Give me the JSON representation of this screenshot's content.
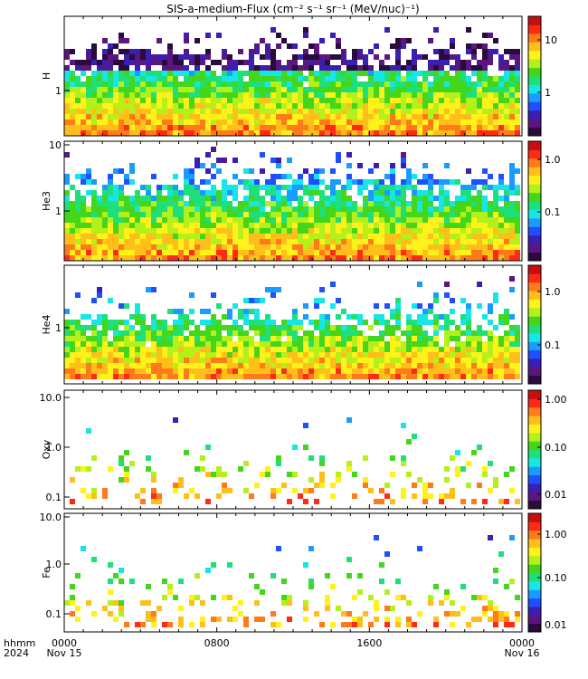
{
  "title": "SIS-a-medium-Flux (cm⁻² s⁻¹ sr⁻¹ (MeV/nuc)⁻¹)",
  "palette": [
    "#ffffff",
    "#2b0a3d",
    "#5b167f",
    "#3a1fb2",
    "#1f4fff",
    "#1a9cff",
    "#18e6e6",
    "#1ee07a",
    "#43d61a",
    "#b4f01a",
    "#fff21a",
    "#ffbf1a",
    "#ff7a1a",
    "#ff2a14",
    "#c80f0f"
  ],
  "x_axis": {
    "label_row1": "hhmm",
    "label_row2": "2024",
    "ticks": [
      {
        "hhmm": "0000",
        "date": "Nov 15"
      },
      {
        "hhmm": "0800",
        "date": ""
      },
      {
        "hhmm": "1600",
        "date": ""
      },
      {
        "hhmm": "0000",
        "date": "Nov 16"
      }
    ]
  },
  "chart_data": [
    {
      "type": "heatmap",
      "panel": "H",
      "ylabel": "H",
      "y_scale": "log",
      "y_ticks": [
        "1"
      ],
      "colorbar": {
        "scale": "log",
        "ticks": [
          "10",
          "1"
        ]
      },
      "x_range_hours": [
        0,
        24
      ]
    },
    {
      "type": "heatmap",
      "panel": "He3",
      "ylabel": "He3",
      "y_scale": "log",
      "y_ticks": [
        "10",
        "1"
      ],
      "colorbar": {
        "scale": "log",
        "ticks": [
          "1.0",
          "0.1"
        ]
      },
      "x_range_hours": [
        0,
        24
      ]
    },
    {
      "type": "heatmap",
      "panel": "He4",
      "ylabel": "He4",
      "y_scale": "log",
      "y_ticks": [
        "1"
      ],
      "colorbar": {
        "scale": "log",
        "ticks": [
          "1.0",
          "0.1"
        ]
      },
      "x_range_hours": [
        0,
        24
      ]
    },
    {
      "type": "heatmap",
      "panel": "Oxy",
      "ylabel": "Oxy",
      "y_scale": "log",
      "y_ticks": [
        "10.0",
        "1.0",
        "0.1"
      ],
      "colorbar": {
        "scale": "log",
        "ticks": [
          "1.00",
          "0.10",
          "0.01"
        ]
      },
      "x_range_hours": [
        0,
        24
      ]
    },
    {
      "type": "heatmap",
      "panel": "Fe",
      "ylabel": "Fe",
      "y_scale": "log",
      "y_ticks": [
        "10.0",
        "1.0",
        "0.1"
      ],
      "colorbar": {
        "scale": "log",
        "ticks": [
          "1.00",
          "0.10",
          "0.01"
        ]
      },
      "x_range_hours": [
        0,
        24
      ]
    }
  ]
}
